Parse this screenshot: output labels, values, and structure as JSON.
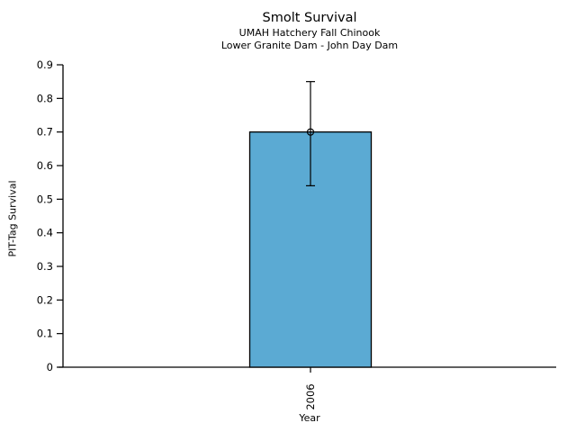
{
  "chart_data": {
    "type": "bar",
    "title": "Smolt Survival",
    "subtitle_lines": [
      "UMAH Hatchery Fall Chinook",
      "Lower Granite Dam - John Day Dam"
    ],
    "xlabel": "Year",
    "ylabel": "PIT-Tag Survival",
    "categories": [
      "2006"
    ],
    "values": [
      0.7
    ],
    "error_bars": [
      {
        "lower": 0.54,
        "upper": 0.85
      }
    ],
    "ylim": [
      0,
      0.9
    ],
    "yticks": [
      0,
      0.1,
      0.2,
      0.3,
      0.4,
      0.5,
      0.6,
      0.7,
      0.8,
      0.9
    ],
    "ytick_labels": [
      "0",
      "0.1",
      "0.2",
      "0.3",
      "0.4",
      "0.5",
      "0.6",
      "0.7",
      "0.8",
      "0.9"
    ],
    "bar_color": "#5BAAD3",
    "bar_edge_color": "#000000",
    "axis_color": "#000000",
    "text_color": "#000000",
    "marker": "open-circle",
    "grid": false,
    "legend": null
  }
}
